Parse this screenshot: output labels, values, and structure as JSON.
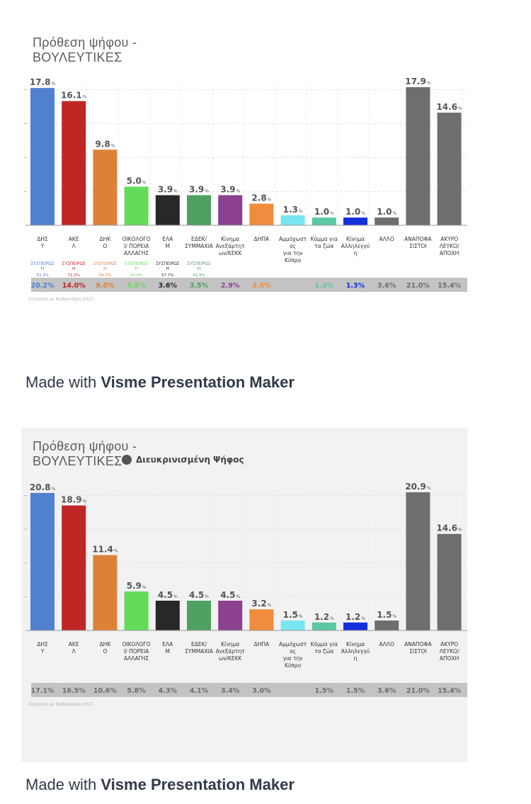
{
  "made_with": {
    "prefix": "Made with",
    "brand": "Visme Presentation Maker"
  },
  "chart_data": [
    {
      "type": "bar",
      "title_lines": [
        "Πρόθεση ψήφου -",
        "ΒΟΥΛΕΥΤΙΚΕΣ"
      ],
      "categories": [
        [
          "ΔΗΣ",
          "Υ"
        ],
        [
          "ΑΚΕ",
          "Λ"
        ],
        [
          "ΔΗΚ",
          "Ο"
        ],
        [
          "ΟΙΚΟΛΟΓΟ",
          "Ι/ ΠΟΡΕΙΑ",
          "ΑΛΛΑΓΗΣ"
        ],
        [
          "ΕΛΑ",
          "Μ"
        ],
        [
          "ΕΔΕΚ/",
          "ΣΥΜΜΑΧΙΑ"
        ],
        [
          "Κίνημα",
          "Ανεξάρτητ",
          "ων/ΚΕΚΚ"
        ],
        [
          "ΔΗΠΑ"
        ],
        [
          "Αμμόχωστ",
          "ος",
          "για την",
          "Κύπρο"
        ],
        [
          "Κόμμα για",
          "τα ζώα"
        ],
        [
          "Κίνημα",
          "Αλληλεγγύ",
          "η"
        ],
        [
          "ΑΛΛΟ"
        ],
        [
          "ΑΝΑΠΟΦΑ",
          "ΣΙΣΤΟΙ"
        ],
        [
          "ΑΚΥΡΟ",
          "ΛΕΥΚΟ/",
          "ΑΠΟΧΗ"
        ]
      ],
      "values": [
        17.8,
        16.1,
        9.8,
        5.0,
        3.9,
        3.9,
        3.9,
        2.8,
        1.3,
        1.0,
        1.0,
        1.0,
        17.9,
        14.6
      ],
      "value_labels": [
        "17.8",
        "16.1",
        "9.8",
        "5.0",
        "3.9",
        "3.9",
        "3.9",
        "2.8",
        "1.3",
        "1.0",
        "1.0",
        "1.0",
        "17.9",
        "14.6"
      ],
      "unit": "%",
      "colors": [
        "#5080d0",
        "#bf2626",
        "#dc8238",
        "#64dc5a",
        "#282828",
        "#50a064",
        "#8c4090",
        "#f08c3c",
        "#78e6f0",
        "#5ac8a0",
        "#1430dc",
        "#6e6e6e",
        "#6e6e6e",
        "#6e6e6e"
      ],
      "ylim": [
        0,
        18
      ],
      "ytick_step": 4.4,
      "support": [
        {
          "label": [
            "ΣΥΣΠΕΙΡΩΣ",
            "Η"
          ],
          "pct": "53.3%"
        },
        {
          "label": [
            "ΣΥΣΠΕΙΡΩΣ",
            "Η"
          ],
          "pct": "71.2%"
        },
        {
          "label": [
            "ΣΥΣΠΕΙΡΩΣ",
            "Η"
          ],
          "pct": "59.7%"
        },
        {
          "label": [
            "ΣΥΣΠΕΙΡΩΣ",
            "Η"
          ],
          "pct": "50.0%"
        },
        {
          "label": [
            "ΣΥΣΠΕΙΡΩΣ",
            "Η"
          ],
          "pct": "57.7%"
        },
        {
          "label": [
            "ΣΥΣΠΕΙΡΩΣ",
            "Η"
          ],
          "pct": "41.9%"
        }
      ],
      "comparison": [
        "20.2%",
        "14.0%",
        "9.0%",
        "4.9%",
        "3.6%",
        "3.5%",
        "2.9%",
        "2.5%",
        "",
        "1.3%",
        "1.3%",
        "3.6%",
        "21.0%",
        "15.4%"
      ],
      "comparison_colors": [
        "#5080d0",
        "#bf2626",
        "#dc8238",
        "#64dc5a",
        "#282828",
        "#50a064",
        "#8c4090",
        "#f08c3c",
        "#78e6f0",
        "#5ac8a0",
        "#1430dc",
        "#6e6e6e",
        "#6e6e6e",
        "#6e6e6e"
      ],
      "footnote": "Σύγκριση με Φεβρουάριο 2021"
    },
    {
      "type": "bar",
      "title_lines": [
        "Πρόθεση ψήφου -",
        "ΒΟΥΛΕΥΤΙΚΕΣ"
      ],
      "toggle_label": "Διευκρινισμένη Ψήφος",
      "categories": [
        [
          "ΔΗΣ",
          "Υ"
        ],
        [
          "ΑΚΕ",
          "Λ"
        ],
        [
          "ΔΗΚ",
          "Ο"
        ],
        [
          "ΟΙΚΟΛΟΓΟ",
          "Ι/ ΠΟΡΕΙΑ",
          "ΑΛΛΑΓΗΣ"
        ],
        [
          "ΕΛΑ",
          "Μ"
        ],
        [
          "ΕΔΕΚ/",
          "ΣΥΜΜΑΧΙΑ"
        ],
        [
          "Κίνημα",
          "Ανεξάρτητ",
          "ων/ΚΕΚΚ"
        ],
        [
          "ΔΗΠΑ"
        ],
        [
          "Αμμόχωστ",
          "ος",
          "για την",
          "Κύπρο"
        ],
        [
          "Κόμμα για",
          "τα ζώα"
        ],
        [
          "Κίνημα",
          "Αλληλεγγύ",
          "η"
        ],
        [
          "ΑΛΛΟ"
        ],
        [
          "ΑΝΑΠΟΦΑ",
          "ΣΙΣΤΟΙ"
        ],
        [
          "ΑΚΥΡΟ",
          "ΛΕΥΚΟ/",
          "ΑΠΟΧΗ"
        ]
      ],
      "values": [
        20.8,
        18.9,
        11.4,
        5.9,
        4.5,
        4.5,
        4.5,
        3.2,
        1.5,
        1.2,
        1.2,
        1.5,
        20.9,
        14.6
      ],
      "value_labels": [
        "20.8",
        "18.9",
        "11.4",
        "5.9",
        "4.5",
        "4.5",
        "4.5",
        "3.2",
        "1.5",
        "1.2",
        "1.2",
        "1.5",
        "20.9",
        "14.6"
      ],
      "unit": "%",
      "colors": [
        "#5080d0",
        "#bf2626",
        "#dc8238",
        "#64dc5a",
        "#282828",
        "#50a064",
        "#8c4090",
        "#f08c3c",
        "#78e6f0",
        "#5ac8a0",
        "#1430dc",
        "#6e6e6e",
        "#6e6e6e",
        "#6e6e6e"
      ],
      "ylim": [
        0,
        21
      ],
      "ytick_step": 5.1,
      "support": [],
      "comparison": [
        "17.1%",
        "16.5%",
        "10.6%",
        "5.8%",
        "4.3%",
        "4.1%",
        "3.4%",
        "3.0%",
        "",
        "1.5%",
        "1.5%",
        "3.6%",
        "21.0%",
        "15.4%"
      ],
      "comparison_colors": [
        "#6e6e6e",
        "#6e6e6e",
        "#6e6e6e",
        "#6e6e6e",
        "#6e6e6e",
        "#6e6e6e",
        "#6e6e6e",
        "#6e6e6e",
        "#6e6e6e",
        "#6e6e6e",
        "#6e6e6e",
        "#6e6e6e",
        "#6e6e6e",
        "#6e6e6e"
      ],
      "footnote": "Σύγκριση με Φεβρουάριο 2021"
    }
  ]
}
